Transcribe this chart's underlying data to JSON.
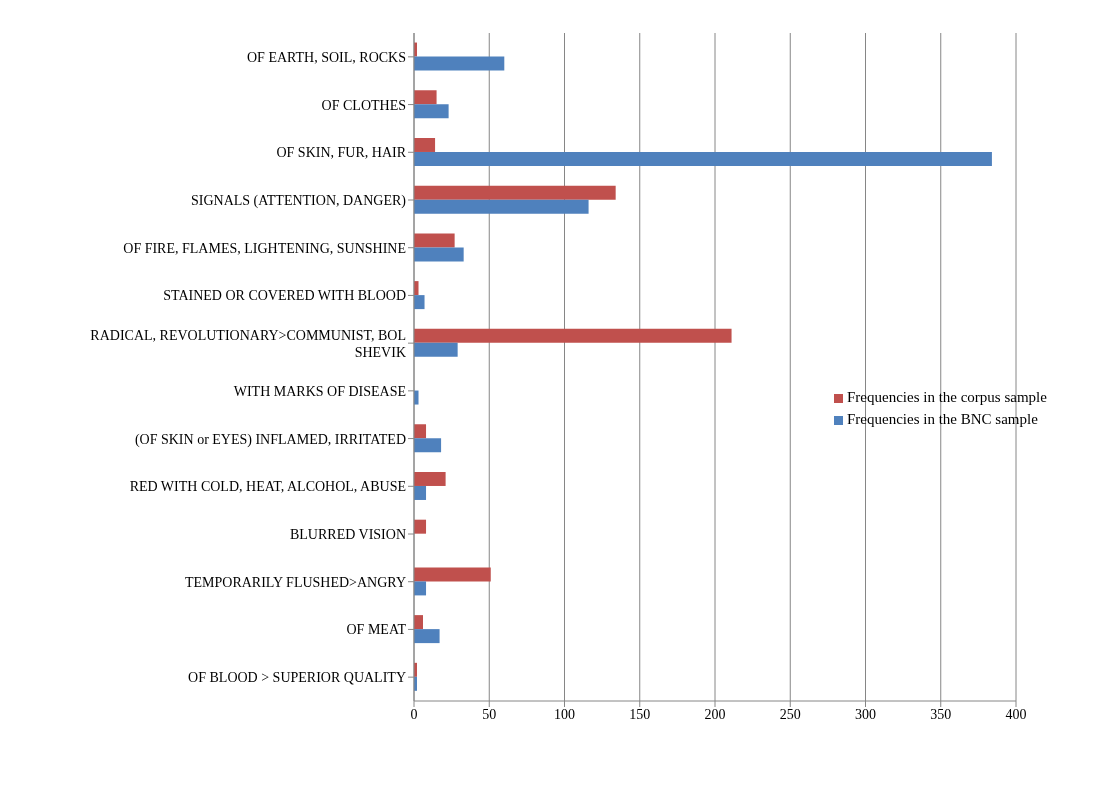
{
  "chart_data": {
    "type": "bar",
    "orientation": "horizontal",
    "categories": [
      "OF EARTH, SOIL, ROCKS",
      "OF CLOTHES",
      "OF SKIN, FUR, HAIR",
      "SIGNALS (ATTENTION, DANGER)",
      "OF FIRE, FLAMES, LIGHTENING, SUNSHINE",
      "STAINED OR COVERED WITH BLOOD",
      "RADICAL, REVOLUTIONARY>COMMUNIST, BOL SHEVIK",
      "WITH MARKS OF DISEASE",
      "(OF SKIN or EYES) INFLAMED, IRRITATED",
      "RED WITH COLD, HEAT, ALCOHOL, ABUSE",
      "BLURRED VISION",
      "TEMPORARILY FLUSHED>ANGRY",
      "OF MEAT",
      "OF BLOOD > SUPERIOR QUALITY"
    ],
    "series": [
      {
        "name": "Frequencies in the corpus sample",
        "color": "#c0504d",
        "values": [
          2,
          15,
          14,
          134,
          27,
          3,
          211,
          0,
          8,
          21,
          8,
          51,
          6,
          2
        ]
      },
      {
        "name": "Frequencies in the BNC sample",
        "color": "#4f81bd",
        "values": [
          60,
          23,
          384,
          116,
          33,
          7,
          29,
          3,
          18,
          8,
          0,
          8,
          17,
          2
        ]
      }
    ],
    "xlim": [
      0,
      400
    ],
    "xticks": [
      0,
      50,
      100,
      150,
      200,
      250,
      300,
      350,
      400
    ],
    "grid": "x",
    "legend": "right"
  }
}
